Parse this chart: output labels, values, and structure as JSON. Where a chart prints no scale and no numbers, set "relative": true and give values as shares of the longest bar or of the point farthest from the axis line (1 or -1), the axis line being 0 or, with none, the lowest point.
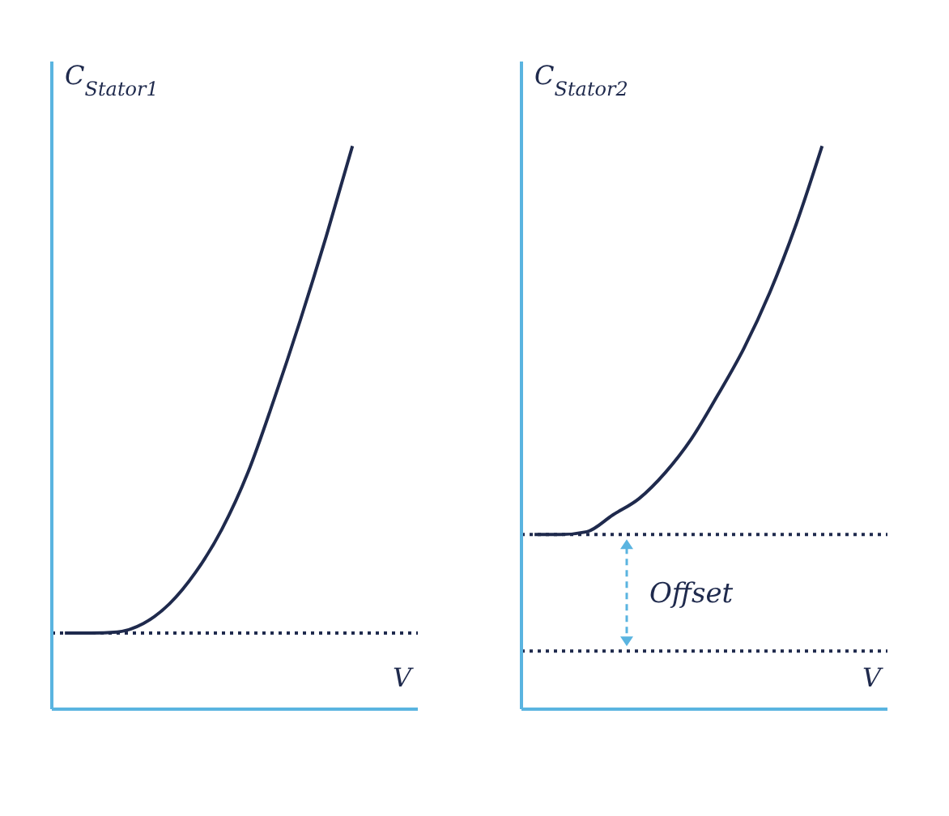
{
  "chart_data": [
    {
      "type": "line",
      "ylabel": "C$_{Stator1}$",
      "xlabel": "V",
      "relative": true,
      "categories": [
        null,
        null,
        null,
        null,
        null,
        null,
        null,
        null,
        null,
        null,
        null,
        null
      ],
      "series": [
        {
          "color": "#1f2a4d",
          "values": [
            0.135,
            0.135,
            0.137,
            0.152,
            0.187,
            0.243,
            0.319,
            0.42,
            0.55,
            0.69,
            0.84,
            1.0
          ]
        }
      ],
      "ref_lines": [
        {
          "axis": "y",
          "value": 0.135,
          "color": "#1f2a4d",
          "line_style": "dotted"
        }
      ],
      "grid": false,
      "legend": false,
      "marker": "none"
    },
    {
      "type": "line",
      "ylabel": "C$_{Stator2}$",
      "xlabel": "V",
      "relative": true,
      "categories": [
        null,
        null,
        null,
        null,
        null,
        null,
        null,
        null,
        null,
        null,
        null,
        null
      ],
      "series": [
        {
          "color": "#1f2a4d",
          "values": [
            0.31,
            0.31,
            0.315,
            0.345,
            0.374,
            0.42,
            0.48,
            0.557,
            0.64,
            0.74,
            0.86,
            1.0
          ]
        }
      ],
      "ref_lines": [
        {
          "axis": "y",
          "value": 0.31,
          "color": "#1f2a4d",
          "line_style": "dotted"
        },
        {
          "axis": "y",
          "value": 0.103,
          "color": "#1f2a4d",
          "line_style": "dotted"
        }
      ],
      "annotations": [
        "Offset"
      ],
      "grid": false,
      "legend": false,
      "marker": "none"
    }
  ]
}
